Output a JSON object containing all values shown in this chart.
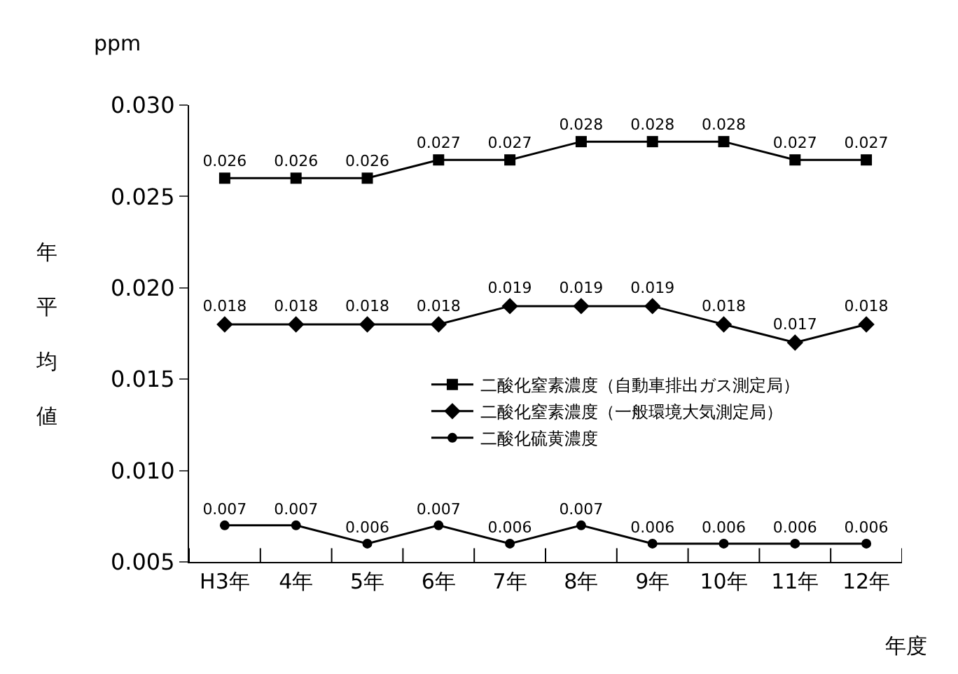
{
  "chart_data": {
    "type": "line",
    "ylabel": "年平均値",
    "xlabel": "年度",
    "annotations": [
      "ppm"
    ],
    "categories": [
      "H3年",
      "4年",
      "5年",
      "6年",
      "7年",
      "8年",
      "9年",
      "10年",
      "11年",
      "12年"
    ],
    "series": [
      {
        "name": "二酸化窒素濃度（自動車排出ガス測定局）",
        "color": "#000000",
        "marker": "square",
        "values": [
          0.026,
          0.026,
          0.026,
          0.027,
          0.027,
          0.028,
          0.028,
          0.028,
          0.027,
          0.027
        ]
      },
      {
        "name": "二酸化窒素濃度（一般環境大気測定局）",
        "color": "#000000",
        "marker": "diamond",
        "values": [
          0.018,
          0.018,
          0.018,
          0.018,
          0.019,
          0.019,
          0.019,
          0.018,
          0.017,
          0.018
        ]
      },
      {
        "name": "二酸化硫黄濃度",
        "color": "#000000",
        "marker": "circle",
        "values": [
          0.007,
          0.007,
          0.006,
          0.007,
          0.006,
          0.007,
          0.006,
          0.006,
          0.006,
          0.006
        ]
      }
    ],
    "ylim": [
      0.005,
      0.03
    ],
    "yticks": [
      {
        "value": 0.005,
        "label": "0.005"
      },
      {
        "value": 0.01,
        "label": "0.010"
      },
      {
        "value": 0.015,
        "label": "0.015"
      },
      {
        "value": 0.02,
        "label": "0.020"
      },
      {
        "value": 0.025,
        "label": "0.025"
      },
      {
        "value": 0.03,
        "label": "0.030"
      }
    ],
    "data_labels": true,
    "legend": "right",
    "line_style": "solid"
  }
}
